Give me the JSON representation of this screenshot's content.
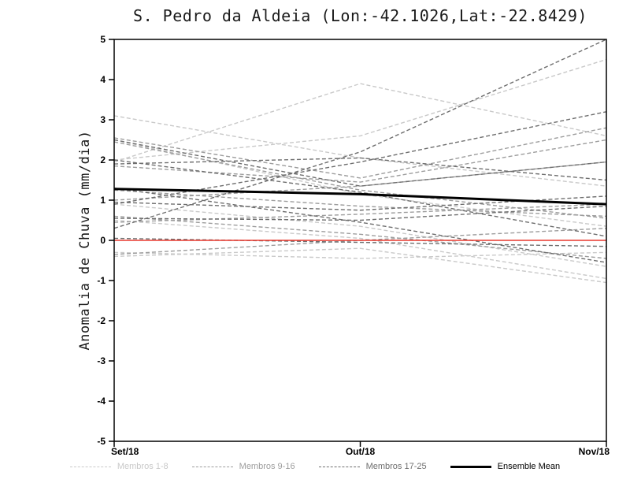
{
  "chart_data": {
    "type": "line",
    "title": "S. Pedro da Aldeia (Lon:-42.1026,Lat:-22.8429)",
    "ylabel": "Anomalia de Chuva (mm/dia)",
    "xlabel": "",
    "ylim": [
      -5,
      5
    ],
    "yticks": [
      5,
      4,
      3,
      2,
      1,
      0,
      -1,
      -2,
      -3,
      -4,
      -5
    ],
    "x_categories": [
      "Set/18",
      "Out/18",
      "Nov/18"
    ],
    "grid": false,
    "legend_position": "bottom",
    "groups": [
      {
        "name": "Membros 1-8",
        "color": "#c9c9c9",
        "style": "dashed",
        "series": [
          [
            3.1,
            2.05,
            1.35
          ],
          [
            1.95,
            3.9,
            2.6
          ],
          [
            2.0,
            2.6,
            4.5
          ],
          [
            2.5,
            1.15,
            0.35
          ],
          [
            0.9,
            0.35,
            -0.65
          ],
          [
            0.5,
            0.05,
            -0.95
          ],
          [
            -0.3,
            -0.45,
            -0.3
          ],
          [
            -0.4,
            -0.2,
            -1.05
          ]
        ]
      },
      {
        "name": "Membros 9-16",
        "color": "#9d9d9d",
        "style": "dashed",
        "series": [
          [
            2.55,
            1.55,
            2.8
          ],
          [
            2.45,
            1.25,
            0.55
          ],
          [
            1.85,
            1.45,
            2.5
          ],
          [
            1.25,
            0.85,
            0.6
          ],
          [
            1.0,
            1.35,
            1.95
          ],
          [
            0.6,
            0.15,
            -0.45
          ],
          [
            0.45,
            0.65,
            0.9
          ],
          [
            -0.35,
            0.0,
            0.3
          ]
        ]
      },
      {
        "name": "Membros 17-25",
        "color": "#6e6e6e",
        "style": "dashed",
        "series": [
          [
            0.3,
            2.2,
            5.0
          ],
          [
            0.9,
            1.95,
            3.2
          ],
          [
            2.5,
            1.35,
            1.95
          ],
          [
            2.0,
            1.2,
            0.1
          ],
          [
            1.9,
            2.05,
            1.5
          ],
          [
            0.95,
            0.75,
            1.1
          ],
          [
            0.55,
            0.5,
            0.85
          ],
          [
            0.05,
            -0.05,
            -0.15
          ],
          [
            1.3,
            0.45,
            -0.55
          ]
        ]
      }
    ],
    "ensemble_mean": {
      "name": "Ensemble Mean",
      "color": "#000000",
      "style": "solid",
      "values": [
        1.28,
        1.15,
        0.9
      ]
    },
    "zero_line": {
      "color": "#e8392e",
      "value": 0
    },
    "legend": [
      {
        "label": "Membros 1-8",
        "color": "#c9c9c9",
        "style": "dashed"
      },
      {
        "label": "Membros 9-16",
        "color": "#9d9d9d",
        "style": "dashed"
      },
      {
        "label": "Membros 17-25",
        "color": "#6e6e6e",
        "style": "dashed"
      },
      {
        "label": "Ensemble Mean",
        "color": "#000000",
        "style": "solid"
      }
    ]
  }
}
